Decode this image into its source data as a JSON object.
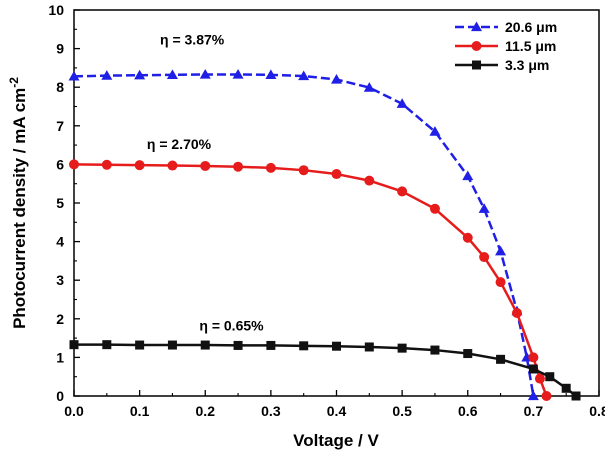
{
  "chart_data": {
    "type": "line",
    "title": "",
    "xlabel": "Voltage / V",
    "ylabel_main": "Photocurrent density / mA cm",
    "ylabel_sup": "-2",
    "xlim": [
      0.0,
      0.8
    ],
    "ylim": [
      0,
      10
    ],
    "x_ticks": [
      "0.0",
      "0.1",
      "0.2",
      "0.3",
      "0.4",
      "0.5",
      "0.6",
      "0.7",
      "0.8"
    ],
    "y_ticks": [
      "0",
      "1",
      "2",
      "3",
      "4",
      "5",
      "6",
      "7",
      "8",
      "9",
      "10"
    ],
    "grid": false,
    "legend_position": "top-right",
    "series": [
      {
        "name": "20.6 μm",
        "color": "#1f1fe6",
        "marker": "triangle",
        "line_style": "dashed",
        "x": [
          0.0,
          0.05,
          0.1,
          0.15,
          0.2,
          0.25,
          0.3,
          0.35,
          0.4,
          0.45,
          0.5,
          0.55,
          0.6,
          0.625,
          0.65,
          0.675,
          0.69,
          0.7
        ],
        "y": [
          8.28,
          8.3,
          8.31,
          8.32,
          8.33,
          8.33,
          8.32,
          8.29,
          8.2,
          7.99,
          7.57,
          6.85,
          5.7,
          4.85,
          3.75,
          2.2,
          1.0,
          0.0
        ]
      },
      {
        "name": "11.5 μm",
        "color": "#e61c1c",
        "marker": "circle",
        "line_style": "solid",
        "x": [
          0.0,
          0.05,
          0.1,
          0.15,
          0.2,
          0.25,
          0.3,
          0.35,
          0.4,
          0.45,
          0.5,
          0.55,
          0.6,
          0.625,
          0.65,
          0.675,
          0.7,
          0.71,
          0.72
        ],
        "y": [
          6.0,
          5.99,
          5.98,
          5.97,
          5.96,
          5.94,
          5.91,
          5.85,
          5.75,
          5.58,
          5.3,
          4.85,
          4.1,
          3.6,
          2.95,
          2.15,
          1.0,
          0.45,
          0.0
        ]
      },
      {
        "name": "3.3 μm",
        "color": "#111111",
        "marker": "square",
        "line_style": "solid",
        "x": [
          0.0,
          0.05,
          0.1,
          0.15,
          0.2,
          0.25,
          0.3,
          0.35,
          0.4,
          0.45,
          0.5,
          0.55,
          0.6,
          0.65,
          0.7,
          0.725,
          0.75,
          0.765
        ],
        "y": [
          1.33,
          1.33,
          1.32,
          1.32,
          1.32,
          1.31,
          1.31,
          1.3,
          1.29,
          1.27,
          1.24,
          1.19,
          1.1,
          0.95,
          0.7,
          0.5,
          0.2,
          0.0
        ]
      }
    ],
    "annotations": [
      {
        "text": "η = 3.87%",
        "x": 0.18,
        "y": 9.1
      },
      {
        "text": "η = 2.70%",
        "x": 0.16,
        "y": 6.4
      },
      {
        "text": "η = 0.65%",
        "x": 0.24,
        "y": 1.7
      }
    ]
  }
}
